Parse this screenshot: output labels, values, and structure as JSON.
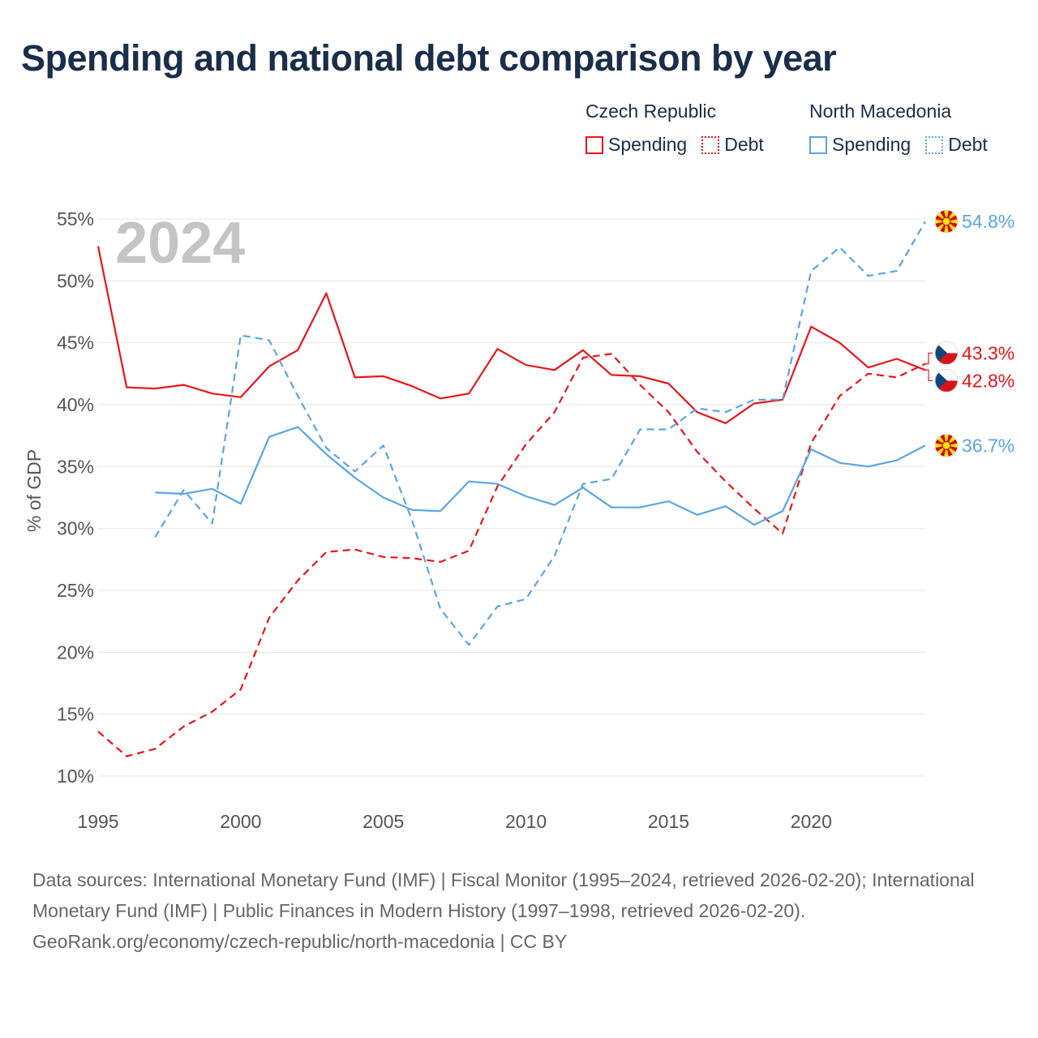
{
  "title": "Spending and national debt comparison by year",
  "legend": {
    "groups": [
      {
        "country": "Czech Republic",
        "items": [
          {
            "label": "Spending",
            "style": "solid",
            "color": "#e8161b"
          },
          {
            "label": "Debt",
            "style": "dotted",
            "color": "#e8161b"
          }
        ]
      },
      {
        "country": "North Macedonia",
        "items": [
          {
            "label": "Spending",
            "style": "solid",
            "color": "#5aa5e6"
          },
          {
            "label": "Debt",
            "style": "dotted",
            "color": "#5aa5e6"
          }
        ]
      }
    ]
  },
  "chart_data": {
    "type": "line",
    "year_label": "2024",
    "ylabel": "% of GDP",
    "xlim": [
      1995,
      2024
    ],
    "ylim": [
      10,
      55
    ],
    "xticks": [
      1995,
      2000,
      2005,
      2010,
      2015,
      2020
    ],
    "yticks": [
      10,
      15,
      20,
      25,
      30,
      35,
      40,
      45,
      50,
      55
    ],
    "ytick_labels": [
      "10%",
      "15%",
      "20%",
      "25%",
      "30%",
      "35%",
      "40%",
      "45%",
      "50%",
      "55%"
    ],
    "series": [
      {
        "name": "Czech Republic Spending",
        "country": "Czech Republic",
        "color": "#e8161b",
        "dash": false,
        "x": [
          1995,
          1996,
          1997,
          1998,
          1999,
          2000,
          2001,
          2002,
          2003,
          2004,
          2005,
          2006,
          2007,
          2008,
          2009,
          2010,
          2011,
          2012,
          2013,
          2014,
          2015,
          2016,
          2017,
          2018,
          2019,
          2020,
          2021,
          2022,
          2023,
          2024
        ],
        "y": [
          52.8,
          41.4,
          41.3,
          41.6,
          40.9,
          40.6,
          43.1,
          44.4,
          49.0,
          42.2,
          42.3,
          41.5,
          40.5,
          40.9,
          44.5,
          43.2,
          42.8,
          44.4,
          42.4,
          42.3,
          41.7,
          39.4,
          38.5,
          40.1,
          40.4,
          46.3,
          45.0,
          43.0,
          43.7,
          42.8
        ]
      },
      {
        "name": "Czech Republic Debt",
        "country": "Czech Republic",
        "color": "#e8161b",
        "dash": true,
        "x": [
          1995,
          1996,
          1997,
          1998,
          1999,
          2000,
          2001,
          2002,
          2003,
          2004,
          2005,
          2006,
          2007,
          2008,
          2009,
          2010,
          2011,
          2012,
          2013,
          2014,
          2015,
          2016,
          2017,
          2018,
          2019,
          2020,
          2021,
          2022,
          2023,
          2024
        ],
        "y": [
          13.6,
          11.6,
          12.2,
          14.0,
          15.2,
          17.0,
          22.8,
          25.8,
          28.1,
          28.3,
          27.7,
          27.6,
          27.3,
          28.2,
          33.4,
          36.8,
          39.4,
          43.8,
          44.1,
          41.6,
          39.4,
          36.2,
          33.8,
          31.6,
          29.6,
          36.9,
          40.7,
          42.5,
          42.2,
          43.3
        ]
      },
      {
        "name": "North Macedonia Spending",
        "country": "North Macedonia",
        "color": "#5aa5e6",
        "dash": false,
        "x": [
          1997,
          1998,
          1999,
          2000,
          2001,
          2002,
          2003,
          2004,
          2005,
          2006,
          2007,
          2008,
          2009,
          2010,
          2011,
          2012,
          2013,
          2014,
          2015,
          2016,
          2017,
          2018,
          2019,
          2020,
          2021,
          2022,
          2023,
          2024
        ],
        "y": [
          32.9,
          32.8,
          33.2,
          32.0,
          37.4,
          38.2,
          36.0,
          34.1,
          32.5,
          31.5,
          31.4,
          33.8,
          33.6,
          32.6,
          31.9,
          33.3,
          31.7,
          31.7,
          32.2,
          31.1,
          31.8,
          30.3,
          31.4,
          36.4,
          35.3,
          35.0,
          35.5,
          36.7
        ]
      },
      {
        "name": "North Macedonia Debt",
        "country": "North Macedonia",
        "color": "#5aa5e6",
        "dash": true,
        "x": [
          1997,
          1998,
          1999,
          2000,
          2001,
          2002,
          2003,
          2004,
          2005,
          2006,
          2007,
          2008,
          2009,
          2010,
          2011,
          2012,
          2013,
          2014,
          2015,
          2016,
          2017,
          2018,
          2019,
          2020,
          2021,
          2022,
          2023,
          2024
        ],
        "y": [
          29.3,
          33.1,
          30.4,
          45.6,
          45.2,
          40.7,
          36.5,
          34.6,
          36.7,
          30.7,
          23.5,
          20.6,
          23.7,
          24.3,
          27.8,
          33.6,
          34.0,
          38.0,
          38.0,
          39.7,
          39.4,
          40.4,
          40.4,
          50.8,
          52.7,
          50.4,
          50.8,
          54.8
        ]
      }
    ],
    "end_labels": [
      {
        "text": "54.8%",
        "country": "North Macedonia",
        "value": 54.8,
        "color": "#5aa5e6"
      },
      {
        "text": "43.3%",
        "country": "Czech Republic",
        "value": 43.3,
        "color": "#e8161b"
      },
      {
        "text": "42.8%",
        "country": "Czech Republic",
        "value": 42.8,
        "color": "#e8161b"
      },
      {
        "text": "36.7%",
        "country": "North Macedonia",
        "value": 36.7,
        "color": "#5aa5e6"
      }
    ]
  },
  "footer": {
    "sources": "Data sources: International Monetary Fund (IMF) | Fiscal Monitor (1995–2024, retrieved 2026-02-20); International Monetary Fund (IMF) | Public Finances in Modern History (1997–1998, retrieved 2026-02-20).",
    "credit": "GeoRank.org/economy/czech-republic/north-macedonia | CC BY"
  }
}
